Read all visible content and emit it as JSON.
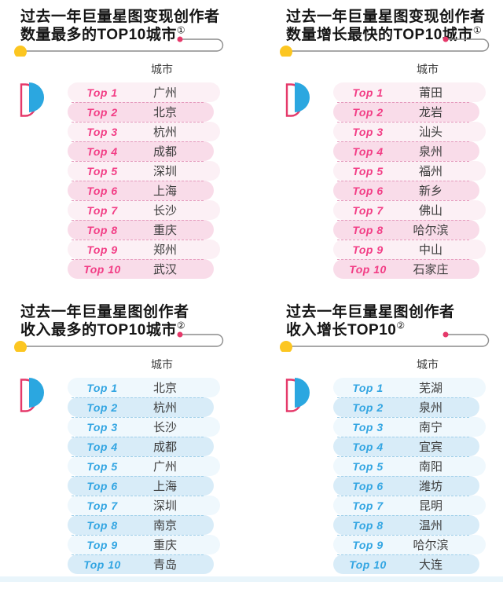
{
  "colors": {
    "title_text": "#151515",
    "city_text": "#3d3d3d",
    "pink_text": "#f23d85",
    "pink_row_odd": "#fcf0f5",
    "pink_row_even": "#f9dce9",
    "pink_dash": "#e59bbd",
    "blue_text": "#32a5e2",
    "blue_row_odd": "#eff8fd",
    "blue_row_even": "#d8ecf8",
    "blue_dash": "#9fcfe9",
    "yellow_dot": "#fcc621",
    "crimson": "#e5396a",
    "logo_blue": "#2ba7e0",
    "line_gray": "#8c8c8c",
    "footer_strip": "#e9f5fb"
  },
  "sections": [
    {
      "theme": "pink",
      "title_line1": "过去一年巨量星图变现创作者",
      "title_line2": "数量最多的TOP10城市",
      "footnote_mark": "①",
      "city_header": "城市",
      "rows": [
        {
          "rank": "Top 1",
          "city": "广州"
        },
        {
          "rank": "Top 2",
          "city": "北京"
        },
        {
          "rank": "Top 3",
          "city": "杭州"
        },
        {
          "rank": "Top 4",
          "city": "成都"
        },
        {
          "rank": "Top 5",
          "city": "深圳"
        },
        {
          "rank": "Top 6",
          "city": "上海"
        },
        {
          "rank": "Top 7",
          "city": "长沙"
        },
        {
          "rank": "Top 8",
          "city": "重庆"
        },
        {
          "rank": "Top 9",
          "city": "郑州"
        },
        {
          "rank": "Top 10",
          "city": "武汉"
        }
      ]
    },
    {
      "theme": "pink",
      "title_line1": "过去一年巨量星图变现创作者",
      "title_line2": "数量增长最快的TOP10城市",
      "footnote_mark": "①",
      "city_header": "城市",
      "rows": [
        {
          "rank": "Top 1",
          "city": "莆田"
        },
        {
          "rank": "Top 2",
          "city": "龙岩"
        },
        {
          "rank": "Top 3",
          "city": "汕头"
        },
        {
          "rank": "Top 4",
          "city": "泉州"
        },
        {
          "rank": "Top 5",
          "city": "福州"
        },
        {
          "rank": "Top 6",
          "city": "新乡"
        },
        {
          "rank": "Top 7",
          "city": "佛山"
        },
        {
          "rank": "Top 8",
          "city": "哈尔滨"
        },
        {
          "rank": "Top 9",
          "city": "中山"
        },
        {
          "rank": "Top 10",
          "city": "石家庄"
        }
      ]
    },
    {
      "theme": "blue",
      "title_line1": "过去一年巨量星图创作者",
      "title_line2": "收入最多的TOP10城市",
      "footnote_mark": "②",
      "city_header": "城市",
      "rows": [
        {
          "rank": "Top 1",
          "city": "北京"
        },
        {
          "rank": "Top 2",
          "city": "杭州"
        },
        {
          "rank": "Top 3",
          "city": "长沙"
        },
        {
          "rank": "Top 4",
          "city": "成都"
        },
        {
          "rank": "Top 5",
          "city": "广州"
        },
        {
          "rank": "Top 6",
          "city": "上海"
        },
        {
          "rank": "Top 7",
          "city": "深圳"
        },
        {
          "rank": "Top 8",
          "city": "南京"
        },
        {
          "rank": "Top 9",
          "city": "重庆"
        },
        {
          "rank": "Top 10",
          "city": "青岛"
        }
      ]
    },
    {
      "theme": "blue",
      "title_line1": "过去一年巨量星图创作者",
      "title_line2": "收入增长TOP10",
      "footnote_mark": "②",
      "city_header": "城市",
      "rows": [
        {
          "rank": "Top 1",
          "city": "芜湖"
        },
        {
          "rank": "Top 2",
          "city": "泉州"
        },
        {
          "rank": "Top 3",
          "city": "南宁"
        },
        {
          "rank": "Top 4",
          "city": "宜宾"
        },
        {
          "rank": "Top 5",
          "city": "南阳"
        },
        {
          "rank": "Top 6",
          "city": "潍坊"
        },
        {
          "rank": "Top 7",
          "city": "昆明"
        },
        {
          "rank": "Top 8",
          "city": "温州"
        },
        {
          "rank": "Top 9",
          "city": "哈尔滨"
        },
        {
          "rank": "Top 10",
          "city": "大连"
        }
      ]
    }
  ]
}
